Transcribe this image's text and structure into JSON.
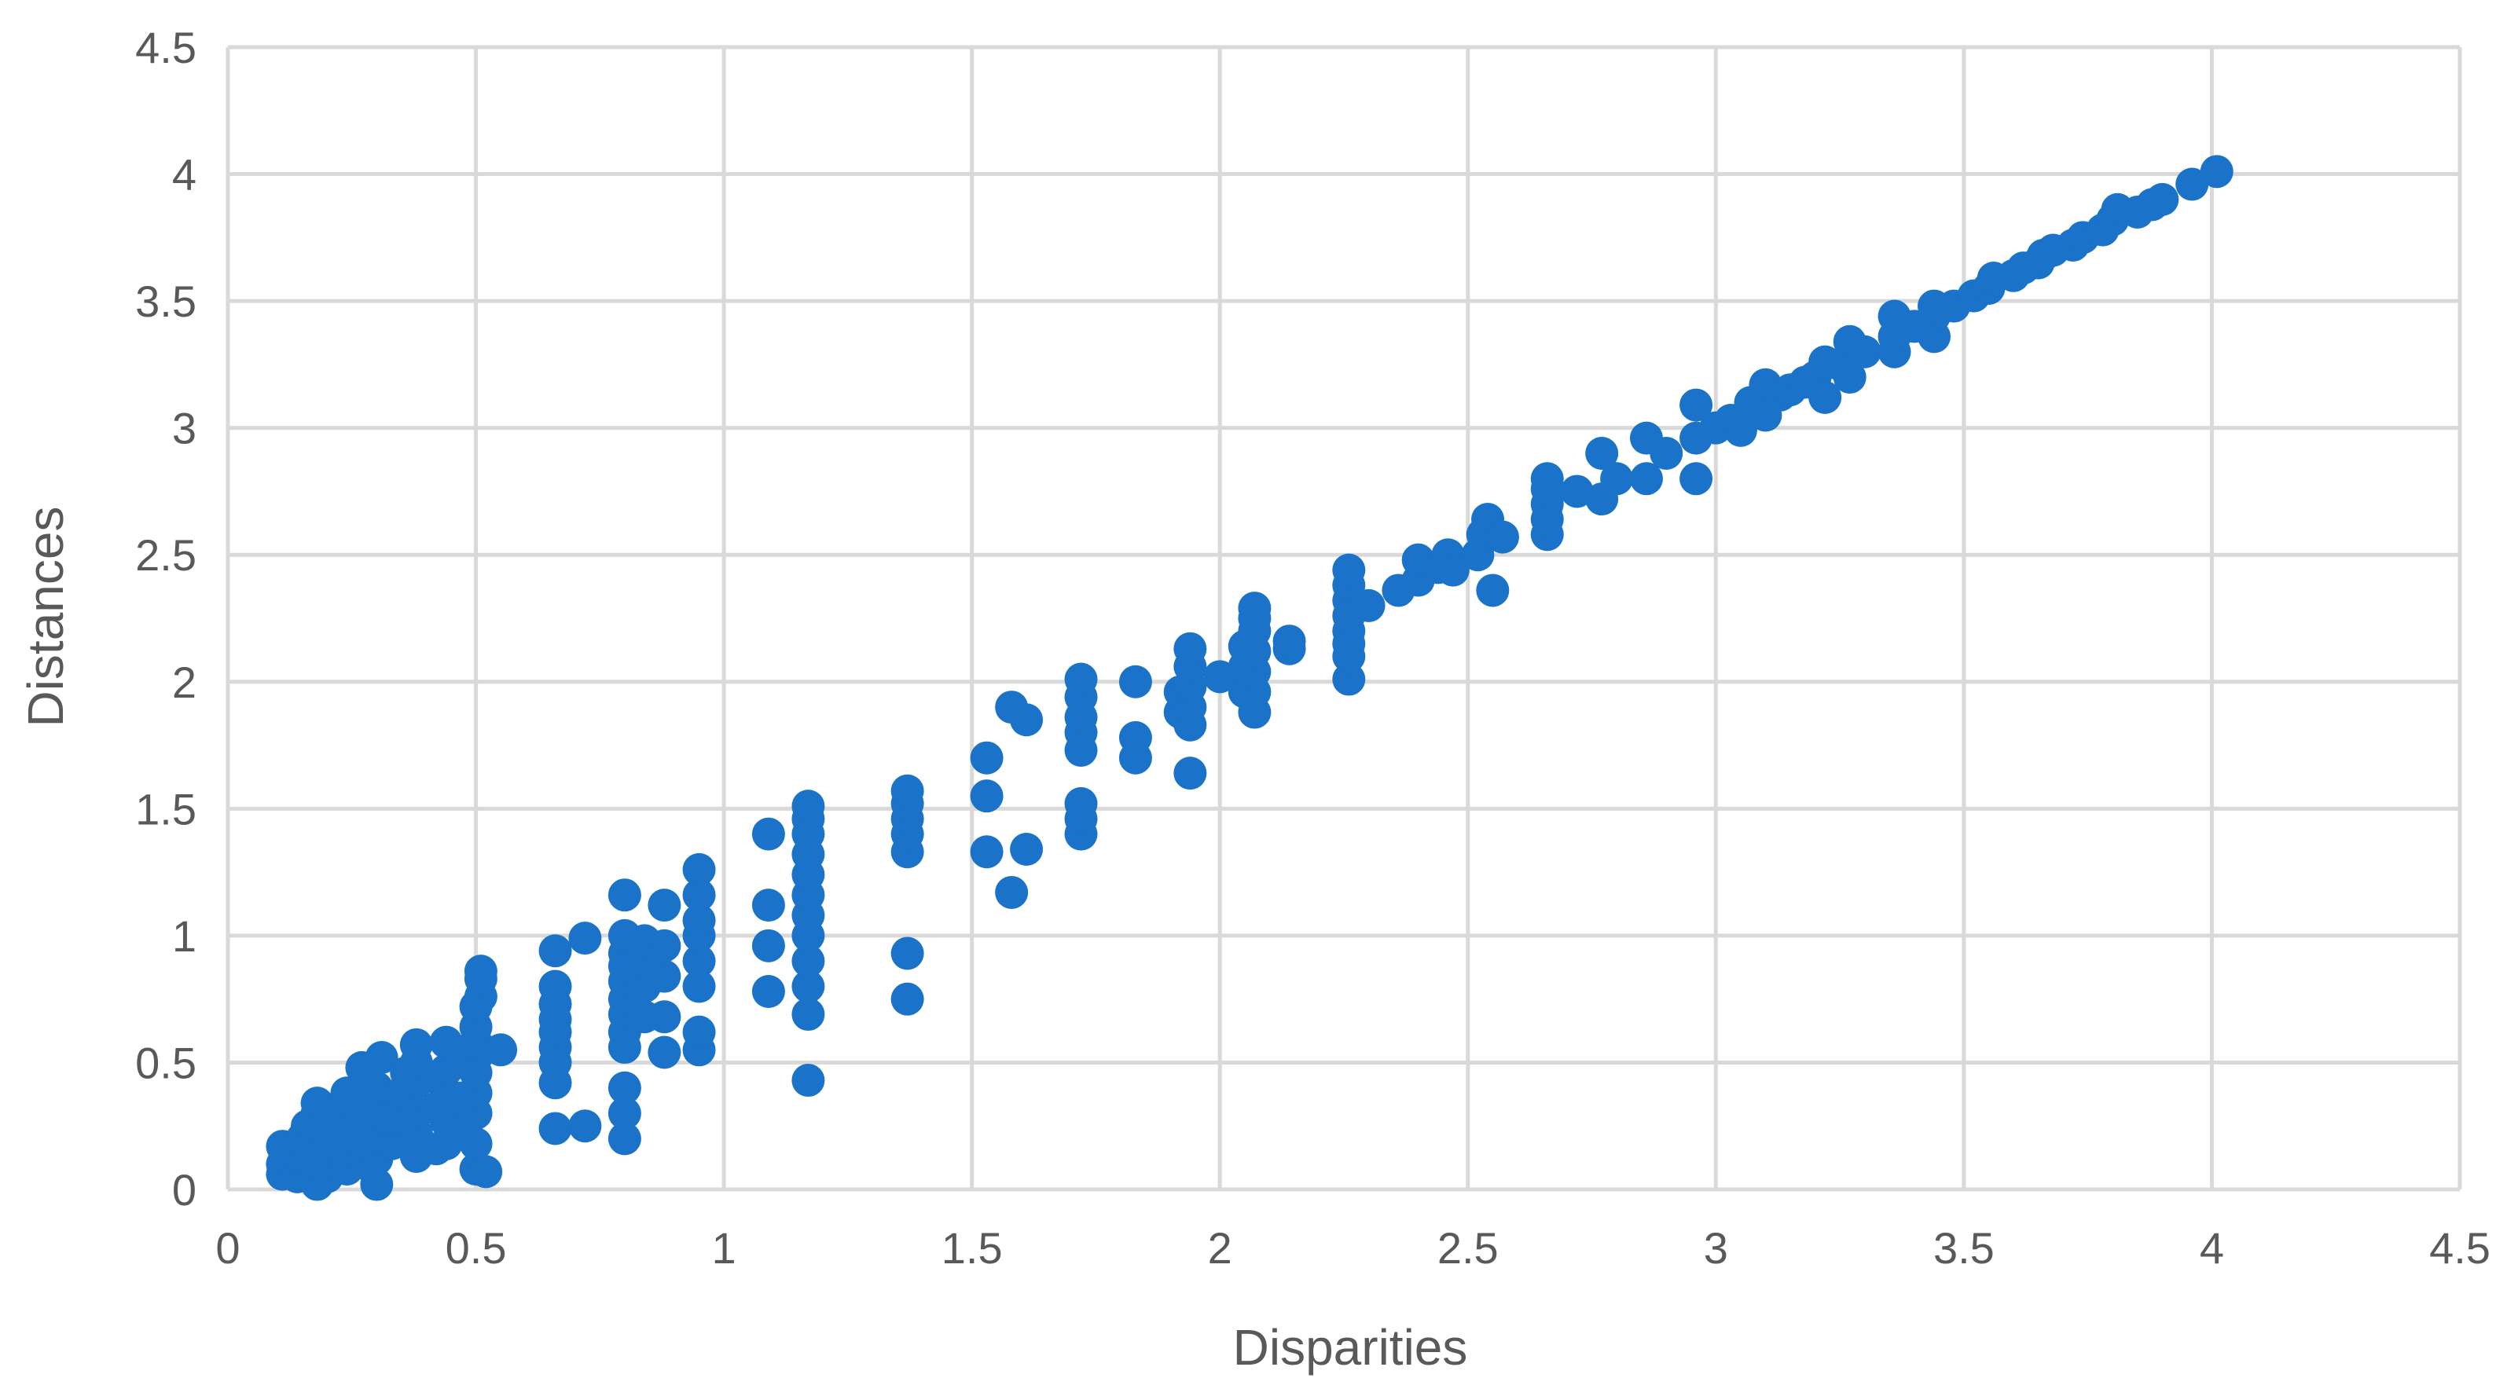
{
  "chart_data": {
    "type": "scatter",
    "title": "",
    "xlabel": "Disparities",
    "ylabel": "Distances",
    "xlim": [
      0,
      4.5
    ],
    "ylim": [
      0,
      4.5
    ],
    "x_ticks": [
      "0",
      "0.5",
      "1",
      "1.5",
      "2",
      "2.5",
      "3",
      "3.5",
      "4",
      "4.5"
    ],
    "y_ticks": [
      "0",
      "0.5",
      "1",
      "1.5",
      "2",
      "2.5",
      "3",
      "3.5",
      "4",
      "4.5"
    ],
    "grid": true,
    "legend": "none",
    "marker_color": "#1a73c8",
    "gridline_color": "#d9d9d9",
    "text_color": "#595959",
    "series": [
      {
        "points": [
          [
            0.11,
            0.06
          ],
          [
            0.11,
            0.1
          ],
          [
            0.11,
            0.17
          ],
          [
            0.14,
            0.05
          ],
          [
            0.15,
            0.12
          ],
          [
            0.15,
            0.2
          ],
          [
            0.16,
            0.25
          ],
          [
            0.18,
            0.02
          ],
          [
            0.18,
            0.08
          ],
          [
            0.18,
            0.15
          ],
          [
            0.18,
            0.22
          ],
          [
            0.18,
            0.3
          ],
          [
            0.18,
            0.34
          ],
          [
            0.2,
            0.05
          ],
          [
            0.2,
            0.12
          ],
          [
            0.2,
            0.2
          ],
          [
            0.2,
            0.28
          ],
          [
            0.22,
            0.1
          ],
          [
            0.22,
            0.18
          ],
          [
            0.22,
            0.24
          ],
          [
            0.22,
            0.32
          ],
          [
            0.24,
            0.08
          ],
          [
            0.24,
            0.14
          ],
          [
            0.24,
            0.22
          ],
          [
            0.24,
            0.38
          ],
          [
            0.26,
            0.12
          ],
          [
            0.26,
            0.2
          ],
          [
            0.26,
            0.3
          ],
          [
            0.27,
            0.48
          ],
          [
            0.28,
            0.1
          ],
          [
            0.28,
            0.18
          ],
          [
            0.28,
            0.26
          ],
          [
            0.28,
            0.36
          ],
          [
            0.28,
            0.44
          ],
          [
            0.3,
            0.02
          ],
          [
            0.3,
            0.12
          ],
          [
            0.3,
            0.2
          ],
          [
            0.3,
            0.3
          ],
          [
            0.3,
            0.4
          ],
          [
            0.31,
            0.52
          ],
          [
            0.33,
            0.18
          ],
          [
            0.33,
            0.28
          ],
          [
            0.35,
            0.38
          ],
          [
            0.36,
            0.46
          ],
          [
            0.38,
            0.13
          ],
          [
            0.38,
            0.22
          ],
          [
            0.38,
            0.3
          ],
          [
            0.38,
            0.42
          ],
          [
            0.38,
            0.5
          ],
          [
            0.38,
            0.57
          ],
          [
            0.42,
            0.16
          ],
          [
            0.42,
            0.32
          ],
          [
            0.42,
            0.44
          ],
          [
            0.44,
            0.18
          ],
          [
            0.44,
            0.27
          ],
          [
            0.44,
            0.38
          ],
          [
            0.44,
            0.47
          ],
          [
            0.44,
            0.58
          ],
          [
            0.47,
            0.24
          ],
          [
            0.47,
            0.36
          ],
          [
            0.47,
            0.5
          ],
          [
            0.5,
            0.08
          ],
          [
            0.5,
            0.18
          ],
          [
            0.5,
            0.3
          ],
          [
            0.5,
            0.38
          ],
          [
            0.5,
            0.46
          ],
          [
            0.5,
            0.52
          ],
          [
            0.5,
            0.58
          ],
          [
            0.5,
            0.64
          ],
          [
            0.5,
            0.72
          ],
          [
            0.51,
            0.76
          ],
          [
            0.51,
            0.83
          ],
          [
            0.51,
            0.86
          ],
          [
            0.52,
            0.07
          ],
          [
            0.55,
            0.55
          ],
          [
            0.66,
            0.24
          ],
          [
            0.66,
            0.42
          ],
          [
            0.66,
            0.5
          ],
          [
            0.66,
            0.56
          ],
          [
            0.66,
            0.62
          ],
          [
            0.66,
            0.67
          ],
          [
            0.66,
            0.73
          ],
          [
            0.66,
            0.8
          ],
          [
            0.66,
            0.94
          ],
          [
            0.72,
            0.25
          ],
          [
            0.72,
            0.99
          ],
          [
            0.8,
            0.2
          ],
          [
            0.8,
            0.3
          ],
          [
            0.8,
            0.4
          ],
          [
            0.8,
            0.56
          ],
          [
            0.8,
            0.62
          ],
          [
            0.8,
            0.69
          ],
          [
            0.8,
            0.75
          ],
          [
            0.8,
            0.82
          ],
          [
            0.8,
            0.88
          ],
          [
            0.8,
            0.93
          ],
          [
            0.8,
            1.0
          ],
          [
            0.8,
            1.16
          ],
          [
            0.84,
            0.68
          ],
          [
            0.84,
            0.8
          ],
          [
            0.84,
            0.9
          ],
          [
            0.84,
            0.98
          ],
          [
            0.88,
            0.54
          ],
          [
            0.88,
            0.68
          ],
          [
            0.88,
            0.84
          ],
          [
            0.88,
            0.96
          ],
          [
            0.88,
            1.12
          ],
          [
            0.95,
            0.55
          ],
          [
            0.95,
            0.62
          ],
          [
            0.95,
            0.8
          ],
          [
            0.95,
            0.9
          ],
          [
            0.95,
            1.0
          ],
          [
            0.95,
            1.06
          ],
          [
            0.95,
            1.16
          ],
          [
            0.95,
            1.26
          ],
          [
            1.09,
            0.78
          ],
          [
            1.09,
            0.96
          ],
          [
            1.09,
            1.12
          ],
          [
            1.09,
            1.4
          ],
          [
            1.17,
            0.43
          ],
          [
            1.17,
            0.69
          ],
          [
            1.17,
            0.8
          ],
          [
            1.17,
            0.9
          ],
          [
            1.17,
            1.0
          ],
          [
            1.17,
            1.08
          ],
          [
            1.17,
            1.16
          ],
          [
            1.17,
            1.24
          ],
          [
            1.17,
            1.32
          ],
          [
            1.17,
            1.4
          ],
          [
            1.17,
            1.46
          ],
          [
            1.17,
            1.51
          ],
          [
            1.37,
            0.75
          ],
          [
            1.37,
            0.93
          ],
          [
            1.37,
            1.33
          ],
          [
            1.37,
            1.4
          ],
          [
            1.37,
            1.46
          ],
          [
            1.37,
            1.52
          ],
          [
            1.37,
            1.57
          ],
          [
            1.53,
            1.33
          ],
          [
            1.53,
            1.55
          ],
          [
            1.53,
            1.7
          ],
          [
            1.58,
            1.17
          ],
          [
            1.58,
            1.9
          ],
          [
            1.61,
            1.34
          ],
          [
            1.61,
            1.85
          ],
          [
            1.72,
            1.4
          ],
          [
            1.72,
            1.46
          ],
          [
            1.72,
            1.52
          ],
          [
            1.72,
            1.73
          ],
          [
            1.72,
            1.8
          ],
          [
            1.72,
            1.86
          ],
          [
            1.72,
            1.94
          ],
          [
            1.72,
            2.01
          ],
          [
            1.83,
            1.7
          ],
          [
            1.83,
            1.78
          ],
          [
            1.83,
            2.0
          ],
          [
            1.92,
            1.88
          ],
          [
            1.92,
            1.96
          ],
          [
            1.94,
            1.64
          ],
          [
            1.94,
            1.83
          ],
          [
            1.94,
            1.9
          ],
          [
            1.94,
            1.98
          ],
          [
            1.94,
            2.06
          ],
          [
            1.94,
            2.13
          ],
          [
            2.0,
            2.02
          ],
          [
            2.05,
            1.96
          ],
          [
            2.05,
            2.06
          ],
          [
            2.05,
            2.14
          ],
          [
            2.07,
            1.88
          ],
          [
            2.07,
            1.96
          ],
          [
            2.07,
            2.04
          ],
          [
            2.07,
            2.12
          ],
          [
            2.07,
            2.2
          ],
          [
            2.07,
            2.25
          ],
          [
            2.07,
            2.29
          ],
          [
            2.14,
            2.13
          ],
          [
            2.14,
            2.16
          ],
          [
            2.26,
            2.01
          ],
          [
            2.26,
            2.1
          ],
          [
            2.26,
            2.15
          ],
          [
            2.26,
            2.2
          ],
          [
            2.26,
            2.26
          ],
          [
            2.26,
            2.32
          ],
          [
            2.26,
            2.38
          ],
          [
            2.26,
            2.44
          ],
          [
            2.3,
            2.3
          ],
          [
            2.36,
            2.36
          ],
          [
            2.4,
            2.4
          ],
          [
            2.4,
            2.48
          ],
          [
            2.44,
            2.45
          ],
          [
            2.46,
            2.5
          ],
          [
            2.47,
            2.44
          ],
          [
            2.52,
            2.5
          ],
          [
            2.53,
            2.58
          ],
          [
            2.54,
            2.64
          ],
          [
            2.55,
            2.36
          ],
          [
            2.57,
            2.57
          ],
          [
            2.66,
            2.58
          ],
          [
            2.66,
            2.64
          ],
          [
            2.66,
            2.7
          ],
          [
            2.66,
            2.76
          ],
          [
            2.66,
            2.8
          ],
          [
            2.72,
            2.75
          ],
          [
            2.77,
            2.72
          ],
          [
            2.77,
            2.9
          ],
          [
            2.8,
            2.8
          ],
          [
            2.86,
            2.8
          ],
          [
            2.86,
            2.96
          ],
          [
            2.9,
            2.9
          ],
          [
            2.96,
            2.8
          ],
          [
            2.96,
            2.96
          ],
          [
            2.96,
            3.09
          ],
          [
            3.0,
            3.0
          ],
          [
            3.03,
            3.03
          ],
          [
            3.05,
            2.99
          ],
          [
            3.07,
            3.07
          ],
          [
            3.07,
            3.1
          ],
          [
            3.1,
            3.05
          ],
          [
            3.1,
            3.17
          ],
          [
            3.13,
            3.13
          ],
          [
            3.15,
            3.15
          ],
          [
            3.18,
            3.18
          ],
          [
            3.2,
            3.2
          ],
          [
            3.22,
            3.12
          ],
          [
            3.22,
            3.26
          ],
          [
            3.25,
            3.25
          ],
          [
            3.27,
            3.2
          ],
          [
            3.27,
            3.34
          ],
          [
            3.3,
            3.3
          ],
          [
            3.36,
            3.3
          ],
          [
            3.36,
            3.36
          ],
          [
            3.36,
            3.44
          ],
          [
            3.4,
            3.4
          ],
          [
            3.44,
            3.36
          ],
          [
            3.44,
            3.44
          ],
          [
            3.44,
            3.48
          ],
          [
            3.48,
            3.48
          ],
          [
            3.52,
            3.52
          ],
          [
            3.55,
            3.55
          ],
          [
            3.56,
            3.59
          ],
          [
            3.6,
            3.6
          ],
          [
            3.62,
            3.63
          ],
          [
            3.65,
            3.65
          ],
          [
            3.66,
            3.68
          ],
          [
            3.68,
            3.7
          ],
          [
            3.72,
            3.72
          ],
          [
            3.74,
            3.75
          ],
          [
            3.78,
            3.78
          ],
          [
            3.8,
            3.82
          ],
          [
            3.81,
            3.86
          ],
          [
            3.85,
            3.85
          ],
          [
            3.88,
            3.88
          ],
          [
            3.9,
            3.9
          ],
          [
            3.96,
            3.96
          ],
          [
            4.01,
            4.01
          ]
        ]
      }
    ]
  }
}
